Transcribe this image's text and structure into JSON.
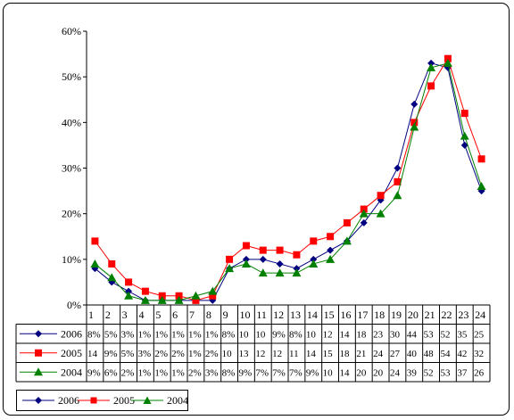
{
  "chart_data": {
    "type": "line",
    "title": "",
    "xlabel": "",
    "ylabel": "",
    "ylim": [
      0,
      60
    ],
    "y_unit": "%",
    "y_ticks": [
      "0%",
      "10%",
      "20%",
      "30%",
      "40%",
      "50%",
      "60%"
    ],
    "grid": false,
    "legend": "bottom-left",
    "categories": [
      "1",
      "2",
      "3",
      "4",
      "5",
      "6",
      "7",
      "8",
      "9",
      "10",
      "11",
      "12",
      "13",
      "14",
      "15",
      "16",
      "17",
      "18",
      "19",
      "20",
      "21",
      "22",
      "23",
      "24"
    ],
    "series": [
      {
        "name": "2006",
        "color": "#000080",
        "marker": "diamond",
        "values": [
          8,
          5,
          3,
          1,
          1,
          1,
          1,
          1,
          8,
          10,
          10,
          9,
          8,
          10,
          12,
          14,
          18,
          23,
          30,
          44,
          53,
          52,
          35,
          25
        ],
        "table_values": [
          "8%",
          "5%",
          "3%",
          "1%",
          "1%",
          "1%",
          "1%",
          "1%",
          "8%",
          "10",
          "10",
          "9%",
          "8%",
          "10",
          "12",
          "14",
          "18",
          "23",
          "30",
          "44",
          "53",
          "52",
          "35",
          "25"
        ]
      },
      {
        "name": "2005",
        "color": "#ff0000",
        "marker": "square",
        "values": [
          14,
          9,
          5,
          3,
          2,
          2,
          1,
          2,
          10,
          13,
          12,
          12,
          11,
          14,
          15,
          18,
          21,
          24,
          27,
          40,
          48,
          54,
          42,
          32
        ],
        "table_values": [
          "14",
          "9%",
          "5%",
          "3%",
          "2%",
          "2%",
          "1%",
          "2%",
          "10",
          "13",
          "12",
          "12",
          "11",
          "14",
          "15",
          "18",
          "21",
          "24",
          "27",
          "40",
          "48",
          "54",
          "42",
          "32"
        ]
      },
      {
        "name": "2004",
        "color": "#008000",
        "marker": "triangle",
        "values": [
          9,
          6,
          2,
          1,
          1,
          1,
          2,
          3,
          8,
          9,
          7,
          7,
          7,
          9,
          10,
          14,
          20,
          20,
          24,
          39,
          52,
          53,
          37,
          26
        ],
        "table_values": [
          "9%",
          "6%",
          "2%",
          "1%",
          "1%",
          "1%",
          "2%",
          "3%",
          "8%",
          "9%",
          "7%",
          "7%",
          "7%",
          "9%",
          "10",
          "14",
          "20",
          "20",
          "24",
          "39",
          "52",
          "53",
          "37",
          "26"
        ]
      }
    ]
  }
}
